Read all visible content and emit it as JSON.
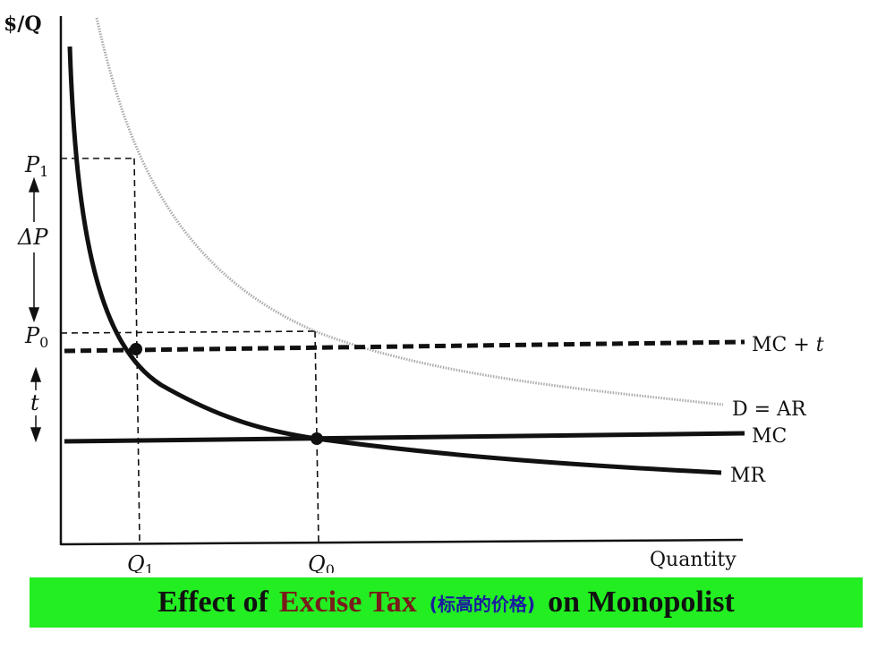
{
  "axes": {
    "y_label": "$/Q",
    "x_label": "Quantity"
  },
  "y_ticks": {
    "p1": "P",
    "p1_sub": "1",
    "p0": "P",
    "p0_sub": "0",
    "delta_p": "ΔP",
    "t": "t"
  },
  "x_ticks": {
    "q1": "Q",
    "q1_sub": "1",
    "q0": "Q",
    "q0_sub": "0"
  },
  "curves": {
    "mc_t": "MC + t",
    "demand": "D = AR",
    "mc": "MC",
    "mr": "MR"
  },
  "caption": {
    "part1": "Effect of",
    "part2": "Excise Tax",
    "part3": "(标高的价格)",
    "part4": "on Monopolist"
  },
  "colors": {
    "caption_bg": "#22ee22",
    "highlight": "#7a1a1a",
    "chinese": "#1a1aa0",
    "demand": "#aaaaaa"
  }
}
